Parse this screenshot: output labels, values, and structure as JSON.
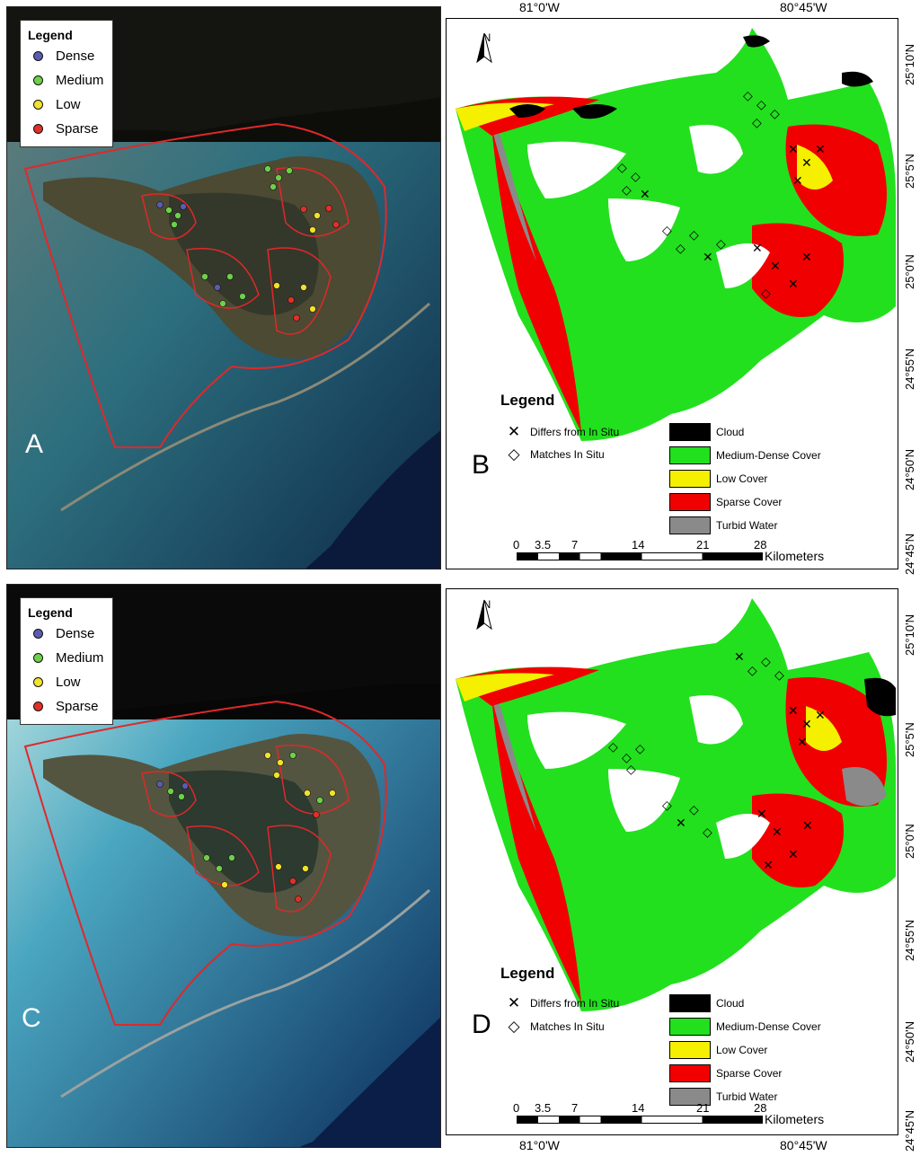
{
  "panel_letters": {
    "a": "A",
    "b": "B",
    "c": "C",
    "d": "D"
  },
  "sat_legend": {
    "title": "Legend",
    "items": [
      {
        "label": "Dense",
        "color": "#5a5cb0"
      },
      {
        "label": "Medium",
        "color": "#6ed04a"
      },
      {
        "label": "Low",
        "color": "#f2e22a"
      },
      {
        "label": "Sparse",
        "color": "#e03028"
      }
    ]
  },
  "map_legend": {
    "title": "Legend",
    "symbols": [
      {
        "glyph": "✕",
        "label": "Differs from In Situ"
      },
      {
        "glyph": "◇",
        "label": "Matches In Situ"
      }
    ],
    "classes": [
      {
        "label": "Cloud",
        "color": "#000000"
      },
      {
        "label": "Medium-Dense Cover",
        "color": "#22e01e"
      },
      {
        "label": "Low Cover",
        "color": "#f4f000"
      },
      {
        "label": "Sparse Cover",
        "color": "#f00000"
      },
      {
        "label": "Turbid Water",
        "color": "#8a8a8a"
      }
    ]
  },
  "north_label": "N",
  "scale": {
    "ticks": [
      "0",
      "3.5",
      "7",
      "14",
      "21",
      "28"
    ],
    "unit": "Kilometers"
  },
  "longitudes": [
    "81°0'W",
    "80°45'W"
  ],
  "latitudes": [
    "25°10'N",
    "25°5'N",
    "25°0'N",
    "24°55'N",
    "24°50'N",
    "24°45'N"
  ],
  "colors": {
    "polygon_outline": "#e0282a",
    "water_deep": "#1b5a78",
    "water_shallow": "#7fb4c4",
    "land": "#3a3a28"
  }
}
